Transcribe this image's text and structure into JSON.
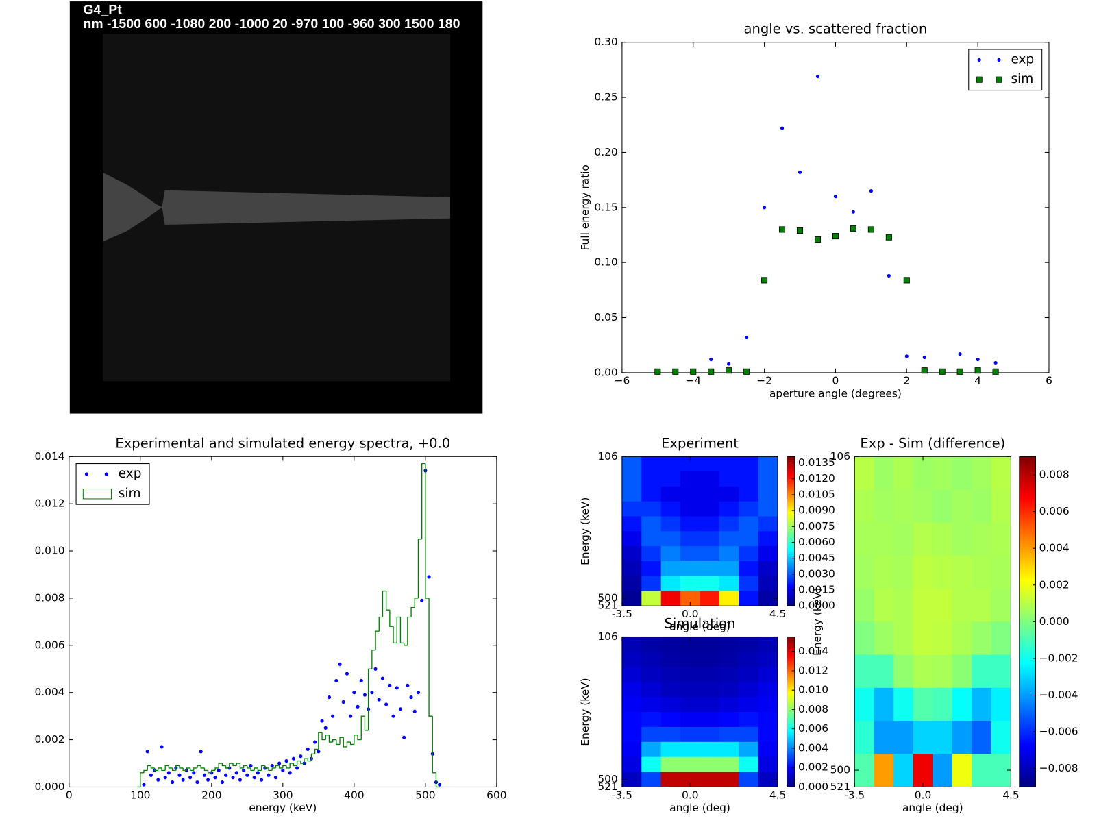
{
  "chart_data": [
    {
      "type": "image",
      "title": "G4_Pt",
      "subtitle": "nm -1500 600 -1080 200 -1000 20 -970 100 -960 300 1500 180"
    },
    {
      "type": "scatter",
      "title": "angle vs. scattered fraction",
      "xlabel": "aperture angle (degrees)",
      "ylabel": "Full energy ratio",
      "xlim": [
        -6,
        6
      ],
      "xticks": [
        {
          "value": -6,
          "label": "−6"
        },
        {
          "value": -4,
          "label": "−4"
        },
        {
          "value": -2,
          "label": "−2"
        },
        0,
        2,
        4,
        6
      ],
      "ylim": [
        0,
        0.3
      ],
      "yticks": [
        {
          "value": 0,
          "label": "0.00"
        },
        {
          "value": 0.05,
          "label": "0.05"
        },
        {
          "value": 0.1,
          "label": "0.10"
        },
        {
          "value": 0.15,
          "label": "0.15"
        },
        {
          "value": 0.2,
          "label": "0.20"
        },
        {
          "value": 0.25,
          "label": "0.25"
        },
        {
          "value": 0.3,
          "label": "0.30"
        }
      ],
      "legend": "upper right",
      "x": [
        -5,
        -4.5,
        -4,
        -3.5,
        -3,
        -2.5,
        -2,
        -1.5,
        -1,
        -0.5,
        0,
        0.5,
        1,
        1.5,
        2,
        2.5,
        3,
        3.5,
        4,
        4.5
      ],
      "series": [
        {
          "name": "exp",
          "color": "#0000ff",
          "marker": "o",
          "values": [
            0.001,
            0.001,
            0.001,
            0.012,
            0.008,
            0.032,
            0.15,
            0.222,
            0.182,
            0.269,
            0.16,
            0.146,
            0.165,
            0.088,
            0.015,
            0.014,
            0.002,
            0.017,
            0.012,
            0.009
          ]
        },
        {
          "name": "sim",
          "color": "#007f00",
          "marker": "s",
          "values": [
            0.001,
            0.001,
            0.001,
            0.001,
            0.002,
            0.001,
            0.084,
            0.13,
            0.129,
            0.121,
            0.124,
            0.131,
            0.13,
            0.123,
            0.084,
            0.002,
            0.001,
            0.001,
            0.002,
            0.001
          ]
        }
      ]
    },
    {
      "type": "spectrum",
      "title": "Experimental and simulated energy spectra, +0.0",
      "xlabel": "energy (keV)",
      "xlim": [
        0,
        600
      ],
      "xticks": [
        0,
        100,
        200,
        300,
        400,
        500,
        600
      ],
      "ylim": [
        0,
        0.014
      ],
      "yticks": [
        {
          "value": 0,
          "label": "0.000"
        },
        {
          "value": 0.002,
          "label": "0.002"
        },
        {
          "value": 0.004,
          "label": "0.004"
        },
        {
          "value": 0.006,
          "label": "0.006"
        },
        {
          "value": 0.008,
          "label": "0.008"
        },
        {
          "value": 0.01,
          "label": "0.010"
        },
        {
          "value": 0.012,
          "label": "0.012"
        },
        {
          "value": 0.014,
          "label": "0.014"
        }
      ],
      "legend": "upper left",
      "series": [
        {
          "name": "exp",
          "color": "#0000ff",
          "marker": "o",
          "x": [
            105,
            110,
            115,
            120,
            125,
            130,
            135,
            140,
            145,
            150,
            155,
            160,
            165,
            170,
            175,
            180,
            185,
            190,
            195,
            200,
            205,
            210,
            215,
            220,
            225,
            230,
            235,
            240,
            245,
            250,
            255,
            260,
            265,
            270,
            275,
            280,
            285,
            290,
            295,
            300,
            305,
            310,
            315,
            320,
            325,
            330,
            335,
            340,
            345,
            350,
            355,
            360,
            365,
            370,
            375,
            380,
            385,
            390,
            395,
            400,
            405,
            410,
            415,
            420,
            425,
            430,
            435,
            440,
            445,
            450,
            455,
            460,
            465,
            470,
            475,
            480,
            485,
            490,
            495,
            500,
            505,
            510,
            515,
            520
          ],
          "values": [
            0.0001,
            0.0015,
            0.0005,
            0.0007,
            0.0003,
            0.0017,
            0.0004,
            0.0006,
            0.0002,
            0.0008,
            0.0005,
            0.0003,
            0.0007,
            0.0004,
            0.0006,
            0.0002,
            0.0015,
            0.0005,
            0.0003,
            0.0006,
            0.0004,
            0.0007,
            0.0002,
            0.0005,
            0.0008,
            0.0004,
            0.0006,
            0.0003,
            0.0007,
            0.0005,
            0.0009,
            0.0004,
            0.0006,
            0.0003,
            0.0008,
            0.0005,
            0.0009,
            0.0004,
            0.001,
            0.0007,
            0.0011,
            0.0006,
            0.0012,
            0.0008,
            0.0013,
            0.001,
            0.0016,
            0.0012,
            0.0019,
            0.0015,
            0.0028,
            0.0025,
            0.0038,
            0.003,
            0.0045,
            0.0052,
            0.0036,
            0.0048,
            0.003,
            0.004,
            0.0034,
            0.0045,
            0.0039,
            0.0033,
            0.004,
            0.005,
            0.0037,
            0.0046,
            0.0035,
            0.0043,
            0.003,
            0.0042,
            0.0033,
            0.0021,
            0.0043,
            0.0038,
            0.0032,
            0.004,
            0.0079,
            0.0134,
            0.0089,
            0.0014,
            0.0002,
            0.0001
          ]
        },
        {
          "name": "sim",
          "color": "#008000",
          "histtype": "step",
          "bins": [
            95,
            100,
            105,
            110,
            115,
            120,
            125,
            130,
            135,
            140,
            145,
            150,
            155,
            160,
            165,
            170,
            175,
            180,
            185,
            190,
            195,
            200,
            205,
            210,
            215,
            220,
            225,
            230,
            235,
            240,
            245,
            250,
            255,
            260,
            265,
            270,
            275,
            280,
            285,
            290,
            295,
            300,
            305,
            310,
            315,
            320,
            325,
            330,
            335,
            340,
            345,
            350,
            355,
            360,
            365,
            370,
            375,
            380,
            385,
            390,
            395,
            400,
            405,
            410,
            415,
            420,
            425,
            430,
            435,
            440,
            445,
            450,
            455,
            460,
            465,
            470,
            475,
            480,
            485,
            490,
            495,
            500,
            505,
            510,
            515,
            520
          ],
          "values": [
            0,
            0.0006,
            0.0007,
            0.0009,
            0.0008,
            0.0007,
            0.0008,
            0.0007,
            0.0009,
            0.0008,
            0.0007,
            0.0009,
            0.0008,
            0.0007,
            0.0008,
            0.0007,
            0.0008,
            0.0009,
            0.0008,
            0.0007,
            0.0006,
            0.0007,
            0.0008,
            0.001,
            0.0009,
            0.0008,
            0.001,
            0.0009,
            0.001,
            0.0008,
            0.0009,
            0.0008,
            0.0007,
            0.0008,
            0.0007,
            0.0009,
            0.0008,
            0.0007,
            0.0008,
            0.0009,
            0.0008,
            0.0009,
            0.0008,
            0.001,
            0.0009,
            0.0011,
            0.001,
            0.0012,
            0.0011,
            0.0014,
            0.0016,
            0.0023,
            0.002,
            0.0022,
            0.0019,
            0.002,
            0.0018,
            0.0021,
            0.0017,
            0.0019,
            0.0018,
            0.0022,
            0.002,
            0.003,
            0.0024,
            0.005,
            0.0058,
            0.0066,
            0.0072,
            0.0083,
            0.0075,
            0.0068,
            0.0061,
            0.0072,
            0.0061,
            0.006,
            0.0072,
            0.0076,
            0.008,
            0.0105,
            0.0137,
            0.008,
            0.003,
            0.0006,
            0
          ]
        }
      ]
    },
    {
      "type": "heatmap",
      "title": "Experiment",
      "xlabel": "angle (deg)",
      "ylabel": "Energy (keV)",
      "yaxis_inverted": true,
      "xlim": [
        -3.5,
        4.5
      ],
      "xticks": [
        -3.5,
        {
          "value": 0,
          "label": "0.0"
        },
        4.5
      ],
      "ylim": [
        106,
        521
      ],
      "yticks": [
        106,
        500,
        521
      ],
      "clim": [
        0,
        0.0141
      ],
      "cticks": [
        {
          "value": 0,
          "label": "0.0000"
        },
        {
          "value": 0.0015,
          "label": "0.0015"
        },
        {
          "value": 0.003,
          "label": "0.0030"
        },
        {
          "value": 0.0045,
          "label": "0.0045"
        },
        {
          "value": 0.006,
          "label": "0.0060"
        },
        {
          "value": 0.0075,
          "label": "0.0075"
        },
        {
          "value": 0.009,
          "label": "0.0090"
        },
        {
          "value": 0.0105,
          "label": "0.0105"
        },
        {
          "value": 0.012,
          "label": "0.0120"
        },
        {
          "value": 0.0135,
          "label": "0.0135"
        }
      ],
      "values": [
        [
          0.003,
          0.002,
          0.002,
          0.002,
          0.002,
          0.002,
          0.002,
          0.003
        ],
        [
          0.003,
          0.002,
          0.002,
          0.0015,
          0.0015,
          0.002,
          0.002,
          0.003
        ],
        [
          0.003,
          0.002,
          0.0015,
          0.0015,
          0.0015,
          0.0015,
          0.002,
          0.003
        ],
        [
          0.0025,
          0.0025,
          0.002,
          0.0015,
          0.0015,
          0.002,
          0.0025,
          0.003
        ],
        [
          0.002,
          0.003,
          0.0025,
          0.002,
          0.002,
          0.0025,
          0.003,
          0.0025
        ],
        [
          0.0015,
          0.003,
          0.003,
          0.0025,
          0.0025,
          0.003,
          0.003,
          0.002
        ],
        [
          0.001,
          0.0025,
          0.0035,
          0.003,
          0.003,
          0.0035,
          0.0025,
          0.0015
        ],
        [
          0.0008,
          0.002,
          0.004,
          0.004,
          0.004,
          0.004,
          0.002,
          0.001
        ],
        [
          0.0005,
          0.0025,
          0.005,
          0.0055,
          0.0055,
          0.005,
          0.0025,
          0.0008
        ],
        [
          0.0003,
          0.008,
          0.0125,
          0.011,
          0.012,
          0.009,
          0.002,
          0.0005
        ]
      ]
    },
    {
      "type": "heatmap",
      "title": "Simulation",
      "xlabel": "angle (deg)",
      "ylabel": "Energy (keV)",
      "yaxis_inverted": true,
      "xlim": [
        -3.5,
        4.5
      ],
      "xticks": [
        -3.5,
        {
          "value": 0,
          "label": "0.0"
        },
        4.5
      ],
      "ylim": [
        106,
        521
      ],
      "yticks": [
        106,
        500,
        521
      ],
      "clim": [
        0,
        0.0155
      ],
      "cticks": [
        {
          "value": 0,
          "label": "0.000"
        },
        {
          "value": 0.002,
          "label": "0.002"
        },
        {
          "value": 0.004,
          "label": "0.004"
        },
        {
          "value": 0.006,
          "label": "0.006"
        },
        {
          "value": 0.008,
          "label": "0.008"
        },
        {
          "value": 0.01,
          "label": "0.010"
        },
        {
          "value": 0.012,
          "label": "0.012"
        },
        {
          "value": 0.014,
          "label": "0.014"
        }
      ],
      "values": [
        [
          0.0008,
          0.0006,
          0.0005,
          0.0004,
          0.0004,
          0.0005,
          0.0006,
          0.0008
        ],
        [
          0.001,
          0.0008,
          0.0006,
          0.0005,
          0.0005,
          0.0006,
          0.0008,
          0.001
        ],
        [
          0.0013,
          0.001,
          0.0008,
          0.0007,
          0.0007,
          0.0008,
          0.001,
          0.0013
        ],
        [
          0.0016,
          0.0013,
          0.001,
          0.0009,
          0.0009,
          0.001,
          0.0013,
          0.0016
        ],
        [
          0.0018,
          0.0016,
          0.0014,
          0.0012,
          0.0012,
          0.0014,
          0.0016,
          0.0018
        ],
        [
          0.002,
          0.0022,
          0.002,
          0.0018,
          0.0018,
          0.002,
          0.0022,
          0.002
        ],
        [
          0.002,
          0.003,
          0.003,
          0.0028,
          0.0028,
          0.003,
          0.003,
          0.002
        ],
        [
          0.0018,
          0.0045,
          0.0055,
          0.0055,
          0.0055,
          0.0055,
          0.0045,
          0.0018
        ],
        [
          0.0015,
          0.006,
          0.008,
          0.008,
          0.008,
          0.008,
          0.006,
          0.0015
        ],
        [
          0.001,
          0.003,
          0.0145,
          0.0145,
          0.0145,
          0.0145,
          0.003,
          0.001
        ]
      ]
    },
    {
      "type": "heatmap",
      "title": "Exp - Sim (difference)",
      "xlabel": "angle (deg)",
      "ylabel": "Energy (keV)",
      "yaxis_inverted": true,
      "xlim": [
        -3.5,
        4.5
      ],
      "xticks": [
        -3.5,
        {
          "value": 0,
          "label": "0.0"
        },
        4.5
      ],
      "ylim": [
        106,
        521
      ],
      "yticks": [
        106,
        500,
        521
      ],
      "clim": [
        -0.009,
        0.009
      ],
      "cticks": [
        {
          "value": -0.008,
          "label": "−0.008"
        },
        {
          "value": -0.006,
          "label": "−0.006"
        },
        {
          "value": -0.004,
          "label": "−0.004"
        },
        {
          "value": -0.002,
          "label": "−0.002"
        },
        {
          "value": 0,
          "label": "0.000"
        },
        {
          "value": 0.002,
          "label": "0.002"
        },
        {
          "value": 0.004,
          "label": "0.004"
        },
        {
          "value": 0.006,
          "label": "0.006"
        },
        {
          "value": 0.008,
          "label": "0.008"
        }
      ],
      "values": [
        [
          0.001,
          0.0005,
          0.0008,
          0.0005,
          0.0006,
          0.0004,
          0.0006,
          0.001
        ],
        [
          0.0008,
          0.0006,
          0.0007,
          0.0006,
          0.0004,
          0.0006,
          0.0005,
          0.0009
        ],
        [
          0.0007,
          0.0007,
          0.0006,
          0.0009,
          0.0008,
          0.0006,
          0.0007,
          0.0008
        ],
        [
          0.0006,
          0.0008,
          0.0007,
          0.0011,
          0.001,
          0.0009,
          0.0008,
          0.0007
        ],
        [
          0.0004,
          0.0009,
          0.0008,
          0.0012,
          0.0012,
          0.0009,
          0.0009,
          0.0006
        ],
        [
          0,
          0.0005,
          0.0008,
          0.0012,
          0.0011,
          0.0008,
          0.0004,
          0
        ],
        [
          -0.001,
          -0.001,
          0.0003,
          0.0008,
          0.0007,
          0.0002,
          -0.0012,
          -0.0012
        ],
        [
          -0.002,
          -0.0035,
          -0.002,
          -0.0008,
          -0.001,
          -0.0022,
          -0.0035,
          -0.0025
        ],
        [
          -0.0015,
          -0.004,
          -0.004,
          -0.003,
          -0.003,
          -0.004,
          -0.005,
          -0.002
        ],
        [
          -0.0008,
          0.004,
          -0.003,
          0.007,
          -0.004,
          0.002,
          -0.001,
          -0.001
        ]
      ]
    }
  ]
}
